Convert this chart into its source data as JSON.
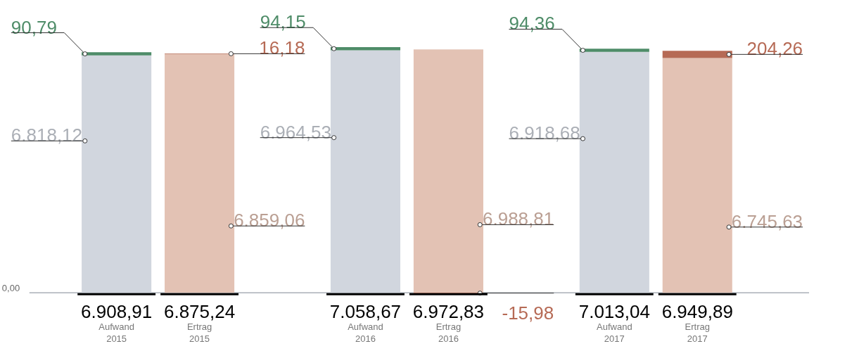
{
  "chart_data": {
    "type": "bar",
    "stacked": true,
    "categories": [
      "Aufwand\n2015",
      "Ertrag\n2015",
      null,
      "Aufwand\n2016",
      "Ertrag\n2016",
      null,
      "Aufwand\n2017",
      "Ertrag\n2017"
    ],
    "series": [
      {
        "color": "#d1d6de",
        "values": [
          6818.12,
          null,
          null,
          6964.53,
          null,
          null,
          6918.68,
          null
        ],
        "value_labels": [
          "6.818,12",
          null,
          null,
          "6.964,53",
          null,
          null,
          "6.918,68",
          null
        ]
      },
      {
        "color": "#4e8c68",
        "values": [
          90.79,
          null,
          null,
          94.15,
          null,
          null,
          94.36,
          null
        ],
        "value_labels": [
          "90,79",
          null,
          null,
          "94,15",
          null,
          null,
          "94,36",
          null
        ]
      },
      {
        "color": "#e3c2b4",
        "values": [
          null,
          6859.06,
          null,
          null,
          6988.81,
          null,
          null,
          6745.63
        ],
        "value_labels": [
          null,
          "6.859,06",
          null,
          null,
          "6.988,81",
          null,
          null,
          "6.745,63"
        ]
      },
      {
        "color": "#b66a55",
        "values": [
          null,
          16.18,
          null,
          null,
          -15.98,
          null,
          null,
          204.26
        ],
        "value_labels": [
          null,
          "16,18",
          null,
          null,
          "-15,98",
          null,
          null,
          "204,26"
        ]
      }
    ],
    "totals": [
      "6.908,91",
      "6.875,24",
      null,
      "7.058,67",
      "6.972,83",
      null,
      "7.013,04",
      "6.949,89"
    ],
    "ylim": [
      -1600,
      8400
    ],
    "annotations": [
      "0,00"
    ]
  }
}
